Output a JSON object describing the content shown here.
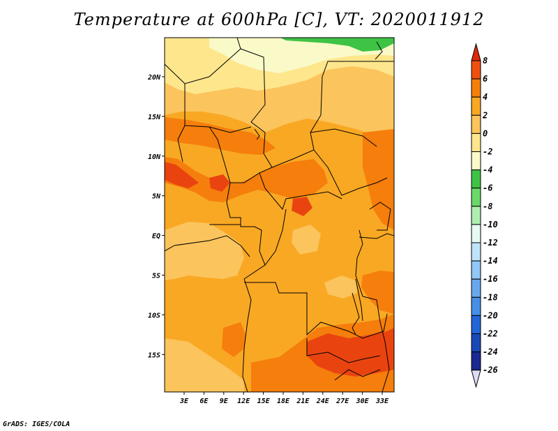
{
  "title": "Temperature at 600hPa [C], VT: 2020011912",
  "credit": "GrADS: IGES/COLA",
  "map": {
    "lon_labels": [
      "3E",
      "6E",
      "9E",
      "12E",
      "15E",
      "18E",
      "21E",
      "24E",
      "27E",
      "30E",
      "33E"
    ],
    "lat_labels": [
      "20N",
      "15N",
      "10N",
      "5N",
      "EQ",
      "5S",
      "10S",
      "15S"
    ],
    "colors": {
      "c_m4": "#fafac8",
      "c_m2": "#fee68c",
      "c_0": "#fbc45c",
      "c_2": "#f9a823",
      "c_4": "#f57e0c",
      "c_6": "#e9440f",
      "c_green": "#3fc345"
    }
  },
  "colorbar": {
    "labels": [
      "8",
      "6",
      "4",
      "2",
      "0",
      "-2",
      "-4",
      "-6",
      "-8",
      "-10",
      "-12",
      "-14",
      "-16",
      "-18",
      "-20",
      "-22",
      "-24",
      "-26"
    ],
    "colors": [
      "#e12806",
      "#f0500f",
      "#f57e0c",
      "#f9a823",
      "#fbc45c",
      "#fee68c",
      "#fafac8",
      "#3fc345",
      "#6ad96a",
      "#aeeeae",
      "#e6f9f4",
      "#bfe3fa",
      "#92c8f6",
      "#6aa8ee",
      "#4690e6",
      "#2266d8",
      "#1a48b6",
      "#1a2890",
      "#0c0c5c",
      "#dcdcf5"
    ]
  }
}
